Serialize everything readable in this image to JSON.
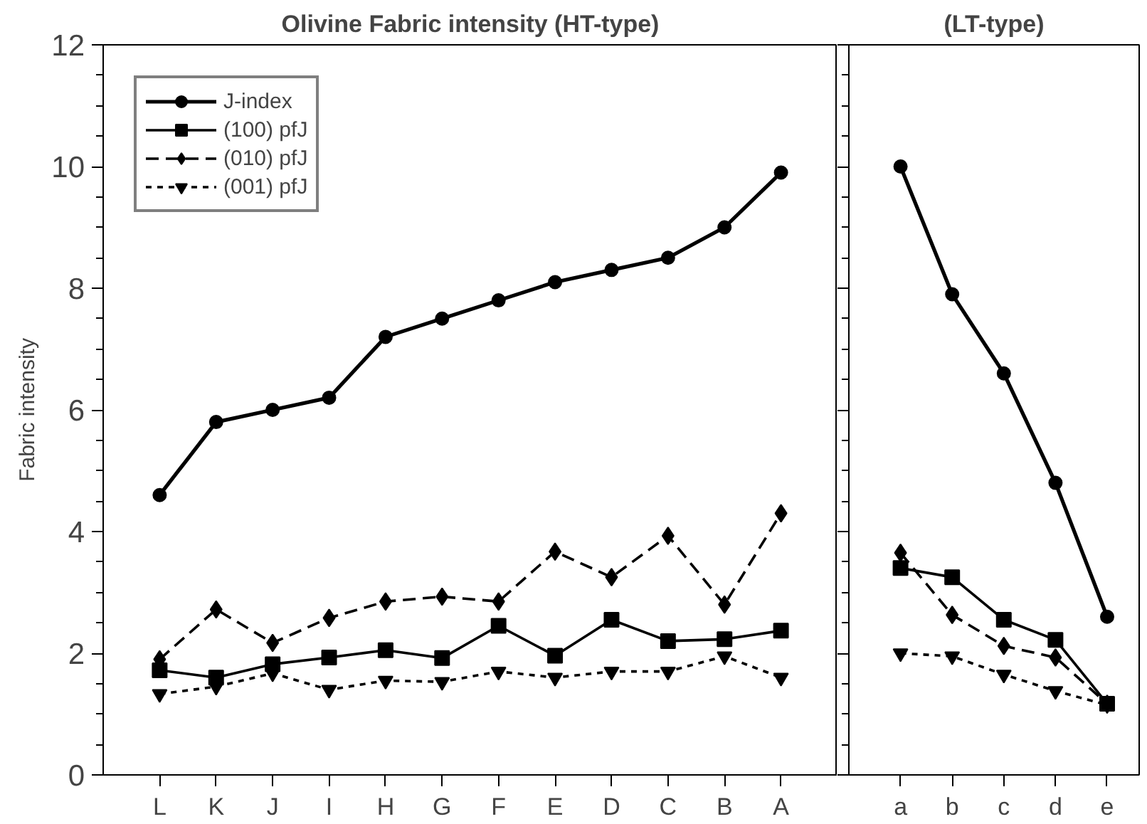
{
  "chart_data": [
    {
      "type": "line",
      "title": "Olivine Fabric intensity (HT-type)",
      "ylabel": "Fabric intensity",
      "categories": [
        "L",
        "K",
        "J",
        "I",
        "H",
        "G",
        "F",
        "E",
        "D",
        "C",
        "B",
        "A"
      ],
      "ylim": [
        0,
        12
      ],
      "yticks": [
        0,
        2,
        4,
        6,
        8,
        10,
        12
      ],
      "legend": "top left",
      "grid": false,
      "series": [
        {
          "name": "J-index",
          "color": "#000000",
          "marker": "circle",
          "line_style": "solid",
          "values": [
            4.6,
            5.8,
            6.0,
            6.2,
            7.2,
            7.5,
            7.8,
            8.1,
            8.3,
            8.5,
            9.0,
            9.9
          ]
        },
        {
          "name": "(100) pfJ",
          "color": "#000000",
          "marker": "square",
          "line_style": "solid",
          "values": [
            1.72,
            1.6,
            1.82,
            1.93,
            2.05,
            1.92,
            2.45,
            1.96,
            2.55,
            2.2,
            2.23,
            2.37
          ]
        },
        {
          "name": "(010) pfJ",
          "color": "#000000",
          "marker": "diamond",
          "line_style": "dashed",
          "values": [
            1.9,
            2.72,
            2.17,
            2.58,
            2.85,
            2.93,
            2.85,
            3.67,
            3.25,
            3.93,
            2.8,
            4.3
          ]
        },
        {
          "name": "(001) pfJ",
          "color": "#000000",
          "marker": "triangle",
          "line_style": "dotted",
          "values": [
            1.33,
            1.45,
            1.67,
            1.4,
            1.55,
            1.53,
            1.7,
            1.6,
            1.7,
            1.7,
            1.95,
            1.6
          ]
        }
      ]
    },
    {
      "type": "line",
      "title": "(LT-type)",
      "categories": [
        "a",
        "b",
        "c",
        "d",
        "e"
      ],
      "ylim": [
        0,
        12
      ],
      "yticks": [
        0,
        2,
        4,
        6,
        8,
        10,
        12
      ],
      "tick_labels": "x",
      "grid": false,
      "series": [
        {
          "color": "#000000",
          "marker": "circle",
          "line_style": "solid",
          "values": [
            10.0,
            7.9,
            6.6,
            4.8,
            2.6
          ]
        },
        {
          "color": "#000000",
          "marker": "square",
          "line_style": "solid",
          "values": [
            3.4,
            3.25,
            2.55,
            2.22,
            1.17
          ]
        },
        {
          "color": "#000000",
          "marker": "diamond",
          "line_style": "dashed",
          "values": [
            3.65,
            2.63,
            2.12,
            1.93,
            1.17
          ]
        },
        {
          "color": "#000000",
          "marker": "triangle",
          "line_style": "dotted",
          "values": [
            2.0,
            1.95,
            1.65,
            1.38,
            1.15
          ]
        }
      ]
    }
  ]
}
